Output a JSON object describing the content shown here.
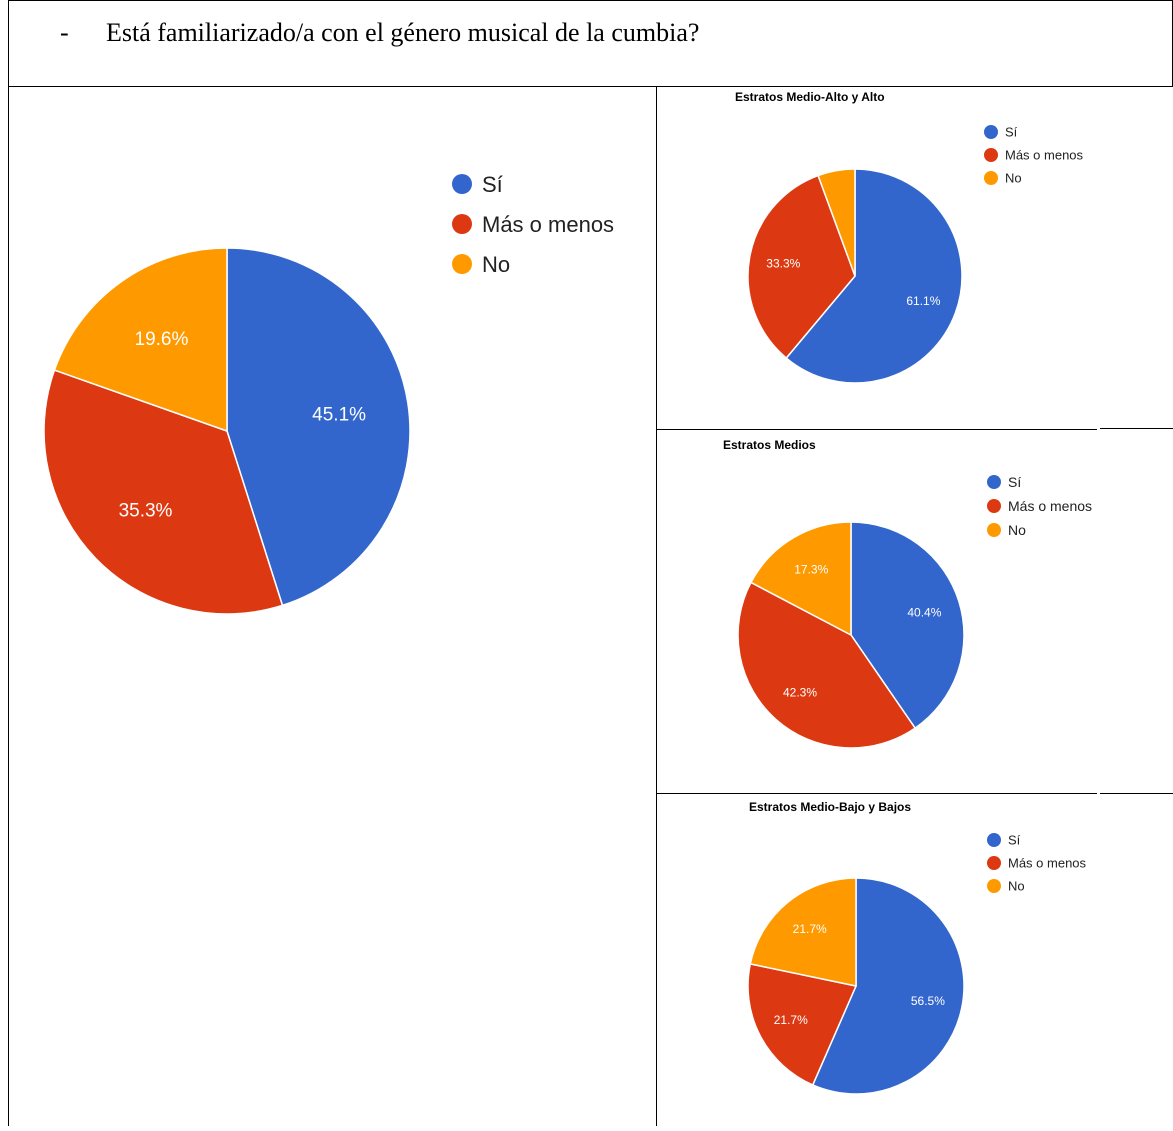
{
  "document": {
    "question_marker": "-",
    "question": "Está familiarizado/a con el género musical de la cumbia?"
  },
  "colors": {
    "si": "#3366CC",
    "mas_o_menos": "#DC3912",
    "no": "#FF9900"
  },
  "chart_data": [
    {
      "type": "pie",
      "title": "",
      "categories": [
        "Sí",
        "Más o menos",
        "No"
      ],
      "values": [
        45.1,
        35.3,
        19.6
      ],
      "labels": [
        "45.1%",
        "35.3%",
        "19.6%"
      ],
      "colors": [
        "#3366CC",
        "#DC3912",
        "#FF9900"
      ],
      "legend": {
        "position": "right",
        "items": [
          "Sí",
          "Más o menos",
          "No"
        ]
      }
    },
    {
      "type": "pie",
      "title": "Estratos Medio-Alto y Alto",
      "categories": [
        "Sí",
        "Más o menos",
        "No"
      ],
      "values": [
        61.1,
        33.3,
        5.6
      ],
      "labels": [
        "61.1%",
        "33.3%",
        ""
      ],
      "colors": [
        "#3366CC",
        "#DC3912",
        "#FF9900"
      ],
      "legend": {
        "position": "right",
        "items": [
          "Sí",
          "Más o menos",
          "No"
        ]
      }
    },
    {
      "type": "pie",
      "title": "Estratos Medios",
      "categories": [
        "Sí",
        "Más o menos",
        "No"
      ],
      "values": [
        40.4,
        42.3,
        17.3
      ],
      "labels": [
        "40.4%",
        "42.3%",
        "17.3%"
      ],
      "colors": [
        "#3366CC",
        "#DC3912",
        "#FF9900"
      ],
      "legend": {
        "position": "right",
        "items": [
          "Sí",
          "Más o menos",
          "No"
        ]
      }
    },
    {
      "type": "pie",
      "title": "Estratos Medio-Bajo y Bajos",
      "categories": [
        "Sí",
        "Más o menos",
        "No"
      ],
      "values": [
        56.5,
        21.7,
        21.7
      ],
      "labels": [
        "56.5%",
        "21.7%",
        "21.7%"
      ],
      "colors": [
        "#3366CC",
        "#DC3912",
        "#FF9900"
      ],
      "legend": {
        "position": "right",
        "items": [
          "Sí",
          "Más o menos",
          "No"
        ]
      }
    }
  ]
}
